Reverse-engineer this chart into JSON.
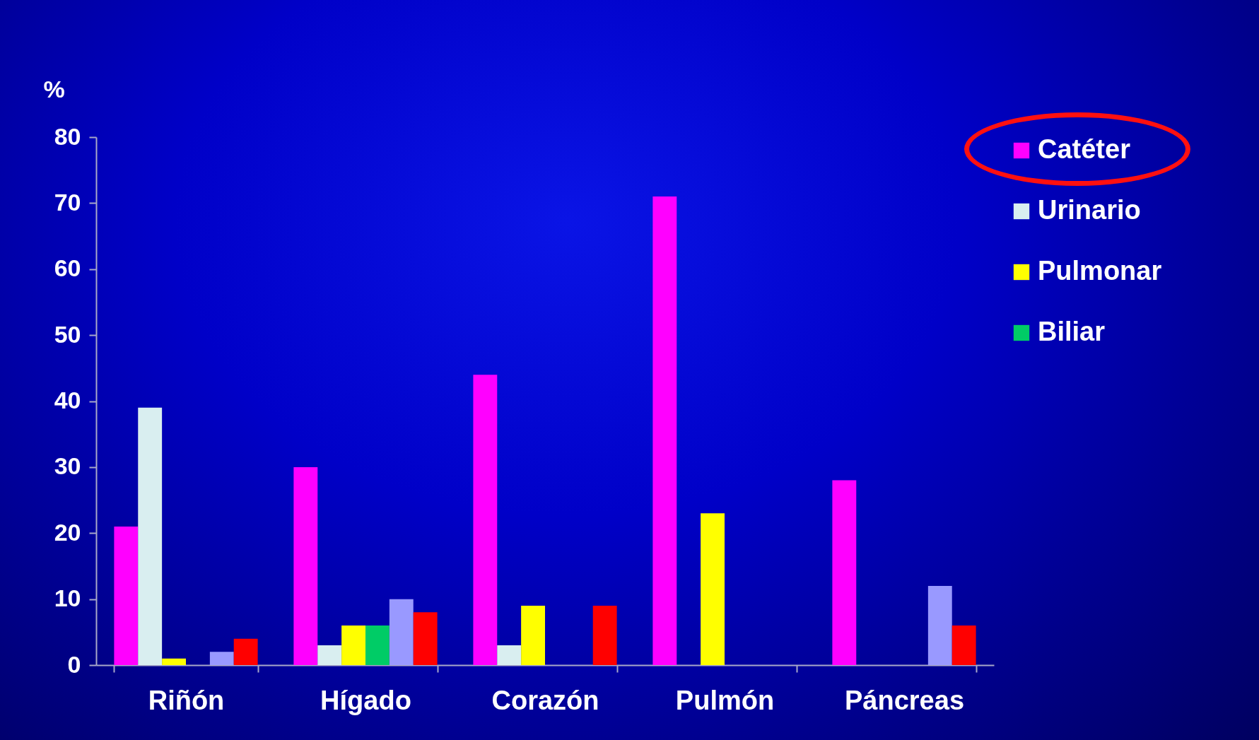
{
  "chart_data": {
    "type": "bar",
    "ylabel": "%",
    "categories": [
      "Riñón",
      "Hígado",
      "Corazón",
      "Pulmón",
      "Páncreas"
    ],
    "series": [
      {
        "name": "Catéter",
        "color": "#ff00ff",
        "values": [
          21,
          30,
          44,
          71,
          28
        ]
      },
      {
        "name": "Urinario",
        "color": "#d9eef0",
        "values": [
          39,
          3,
          3,
          null,
          null
        ]
      },
      {
        "name": "Pulmonar",
        "color": "#ffff00",
        "values": [
          1,
          6,
          9,
          23,
          null
        ]
      },
      {
        "name": "Biliar",
        "color": "#00cc66",
        "values": [
          null,
          6,
          null,
          null,
          null
        ]
      },
      {
        "color": "#9999ff",
        "values": [
          2,
          10,
          null,
          null,
          12
        ]
      },
      {
        "color": "#ff0000",
        "values": [
          4,
          8,
          9,
          null,
          6
        ]
      }
    ],
    "ylim": [
      0,
      80
    ],
    "yticks": [
      0,
      10,
      20,
      30,
      40,
      50,
      60,
      70,
      80
    ],
    "grid": false,
    "legend": "right"
  }
}
